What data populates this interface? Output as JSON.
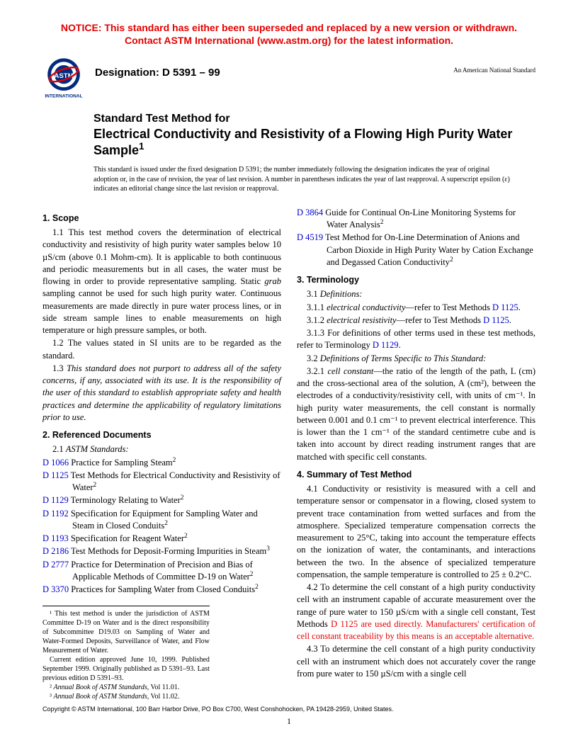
{
  "notice": "NOTICE: This standard has either been superseded and replaced by a new version or withdrawn. Contact ASTM International (www.astm.org) for the latest information.",
  "designation": "Designation: D 5391 – 99",
  "national": "An American National Standard",
  "title_lead": "Standard Test Method for",
  "title_main": "Electrical Conductivity and Resistivity of a Flowing High Purity Water Sample",
  "title_sup": "1",
  "issuance": "This standard is issued under the fixed designation D 5391; the number immediately following the designation indicates the year of original adoption or, in the case of revision, the year of last revision. A number in parentheses indicates the year of last reapproval. A superscript epsilon (ε) indicates an editorial change since the last revision or reapproval.",
  "s1": {
    "head": "1. Scope",
    "p1": "1.1 This test method covers the determination of electrical conductivity and resistivity of high purity water samples below 10 µS/cm (above 0.1 Mohm-cm). It is applicable to both continuous and periodic measurements but in all cases, the water must be flowing in order to provide representative sampling. Static grab sampling cannot be used for such high purity water. Continuous measurements are made directly in pure water process lines, or in side stream sample lines to enable measurements on high temperature or high pressure samples, or both.",
    "p2": "1.2 The values stated in SI units are to be regarded as the standard.",
    "p3": "1.3 This standard does not purport to address all of the safety concerns, if any, associated with its use. It is the responsibility of the user of this standard to establish appropriate safety and health practices and determine the applicability of regulatory limitations prior to use."
  },
  "s2": {
    "head": "2. Referenced Documents",
    "p1": "2.1 ASTM Standards:",
    "refs": [
      {
        "id": "D 1066",
        "txt": " Practice for Sampling Steam",
        "sup": "2"
      },
      {
        "id": "D 1125",
        "txt": " Test Methods for Electrical Conductivity and Resistivity of Water",
        "sup": "2"
      },
      {
        "id": "D 1129",
        "txt": " Terminology Relating to Water",
        "sup": "2"
      },
      {
        "id": "D 1192",
        "txt": " Specification for Equipment for Sampling Water and Steam in Closed Conduits",
        "sup": "2"
      },
      {
        "id": "D 1193",
        "txt": " Specification for Reagent Water",
        "sup": "2"
      },
      {
        "id": "D 2186",
        "txt": " Test Methods for Deposit-Forming Impurities in Steam",
        "sup": "3"
      },
      {
        "id": "D 2777",
        "txt": " Practice for Determination of Precision and Bias of Applicable Methods of Committee D-19 on Water",
        "sup": "2"
      },
      {
        "id": "D 3370",
        "txt": " Practices for Sampling Water from Closed Conduits",
        "sup": "2"
      },
      {
        "id": "D 3864",
        "txt": " Guide for Continual On-Line Monitoring Systems for Water Analysis",
        "sup": "2"
      },
      {
        "id": "D 4519",
        "txt": " Test Method for On-Line Determination of Anions and Carbon Dioxide in High Purity Water by Cation Exchange and Degassed Cation Conductivity",
        "sup": "2"
      }
    ]
  },
  "s3": {
    "head": "3. Terminology",
    "p1": "3.1 Definitions:",
    "p2a": "3.1.1 electrical conductivity—refer to Test Methods ",
    "p2b": "D 1125",
    "p3a": "3.1.2 electrical resistivity—refer to Test Methods ",
    "p3b": "D 1125",
    "p4a": "3.1.3 For definitions of other terms used in these test methods, refer to Terminology ",
    "p4b": "D 1129",
    "p5": "3.2 Definitions of Terms Specific to This Standard:",
    "p6": "3.2.1 cell constant—the ratio of the length of the path, L (cm) and the cross-sectional area of the solution, A (cm²), between the electrodes of a conductivity/resistivity cell, with units of cm⁻¹. In high purity water measurements, the cell constant is normally between 0.001 and 0.1 cm⁻¹ to prevent electrical interference. This is lower than the 1 cm⁻¹ of the standard centimetre cube and is taken into account by direct reading instrument ranges that are matched with specific cell constants."
  },
  "s4": {
    "head": "4. Summary of Test Method",
    "p1": "4.1 Conductivity or resistivity is measured with a cell and temperature sensor or compensator in a flowing, closed system to prevent trace contamination from wetted surfaces and from the atmosphere. Specialized temperature compensation corrects the measurement to 25°C, taking into account the temperature effects on the ionization of water, the contaminants, and interactions between the two. In the absence of specialized temperature compensation, the sample temperature is controlled to 25 ± 0.2°C.",
    "p2a": "4.2 To determine the cell constant of a high purity conductivity cell with an instrument capable of accurate measurement over the range of pure water to 150 µS/cm with a single cell constant, Test Methods ",
    "p2b": "D 1125 are used directly. Manufacturers' certification of cell constant traceability by this means is an acceptable alternative.",
    "p3": "4.3 To determine the cell constant of a high purity conductivity cell with an instrument which does not accurately cover the range from pure water to 150 µS/cm with a single cell"
  },
  "footnotes": {
    "f1": "¹ This test method is under the jurisdiction of ASTM Committee D-19 on Water and is the direct responsibility of Subcommittee D19.03 on Sampling of Water and Water-Formed Deposits, Surveillance of Water, and Flow Measurement of Water.",
    "f1b": "Current edition approved June 10, 1999. Published September 1999. Originally published as D 5391–93. Last previous edition D 5391–93.",
    "f2": "² Annual Book of ASTM Standards, Vol 11.01.",
    "f3": "³ Annual Book of ASTM Standards, Vol 11.02."
  },
  "copyright": "Copyright © ASTM International, 100 Barr Harbor Drive, PO Box C700, West Conshohocken, PA 19428-2959, United States.",
  "pagenum": "1"
}
